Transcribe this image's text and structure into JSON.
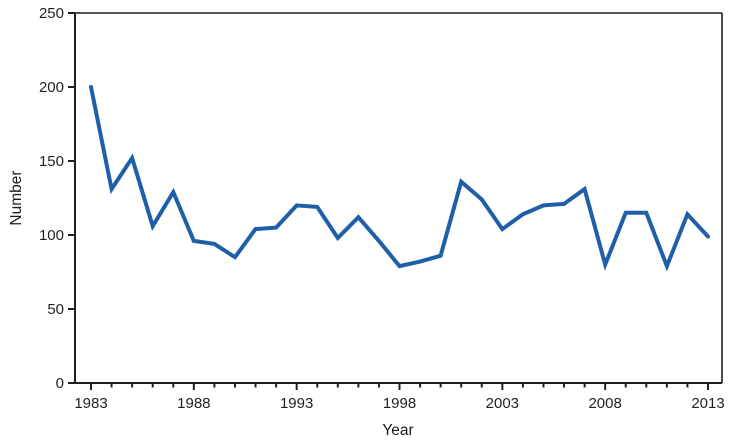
{
  "chart_data": {
    "type": "line",
    "title": "",
    "xlabel": "Year",
    "ylabel": "Number",
    "x": [
      1983,
      1984,
      1985,
      1986,
      1987,
      1988,
      1989,
      1990,
      1991,
      1992,
      1993,
      1994,
      1995,
      1996,
      1997,
      1998,
      1999,
      2000,
      2001,
      2002,
      2003,
      2004,
      2005,
      2006,
      2007,
      2008,
      2009,
      2010,
      2011,
      2012,
      2013
    ],
    "values": [
      200,
      131,
      152,
      106,
      129,
      96,
      94,
      85,
      104,
      105,
      120,
      119,
      98,
      112,
      96,
      79,
      82,
      86,
      136,
      124,
      104,
      114,
      120,
      121,
      131,
      80,
      115,
      115,
      79,
      114,
      99
    ],
    "ylim": [
      0,
      250
    ],
    "yticks": [
      0,
      50,
      100,
      150,
      200,
      250
    ],
    "xticks_labeled": [
      1983,
      1988,
      1993,
      1998,
      2003,
      2008,
      2013
    ],
    "xtick_minor_every_year": true,
    "grid": false,
    "legend": null,
    "line_color": "#1f5fa8",
    "axis_color": "#231f20"
  }
}
